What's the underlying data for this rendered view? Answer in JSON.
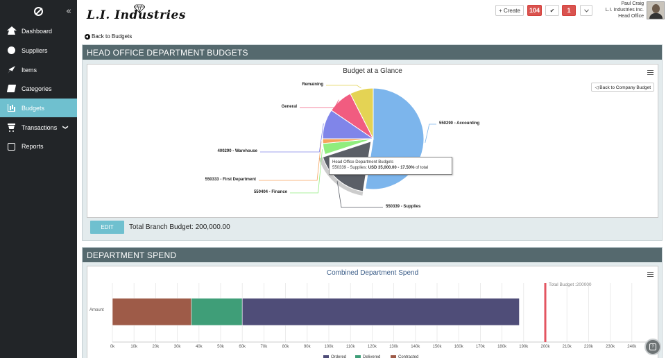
{
  "sidebar": {
    "collapse": "«",
    "items": [
      {
        "label": "Dashboard",
        "icon": "home-icon"
      },
      {
        "label": "Suppliers",
        "icon": "globe-icon"
      },
      {
        "label": "Items",
        "icon": "rocket-icon"
      },
      {
        "label": "Categories",
        "icon": "book-icon"
      },
      {
        "label": "Budgets",
        "icon": "bar-chart-icon",
        "active": true
      },
      {
        "label": "Transactions",
        "icon": "cart-icon",
        "chevron": "❯"
      },
      {
        "label": "Reports",
        "icon": "drive-icon"
      }
    ]
  },
  "header": {
    "brand": "L.I. Industries",
    "create_label": "+ Create",
    "badge_count": "104",
    "check_icon": "✔",
    "alert_badge": "1",
    "user": {
      "name": "Paul Craig",
      "company": "L.I. Industries Inc.",
      "office": "Head Office"
    }
  },
  "back_link": "Back to Budgets",
  "budgets_panel": {
    "title": "HEAD OFFICE DEPARTMENT BUDGETS",
    "chart_title": "Budget at a Glance",
    "back_company_label": "◁ Back to Company Budget",
    "edit_label": "EDIT",
    "total_branch": "Total Branch Budget: 200,000.00",
    "tooltip": {
      "line1": "Head Office Department Budgets",
      "line2_prefix": "550339 - Supplies: ",
      "line2_value": "USD 35,000.00 - 17.50%",
      "line2_suffix": " of total"
    }
  },
  "spend_panel": {
    "title": "DEPARTMENT SPEND",
    "chart_title": "Combined Department Spend",
    "category_label": "Amount",
    "budget_line_label": "Total Budget :200000"
  },
  "chart_data": [
    {
      "type": "pie",
      "title": "Budget at a Glance",
      "slices": [
        {
          "label": "550290 - Accounting",
          "value": 52.5,
          "color": "#7cb5ec"
        },
        {
          "label": "550339 - Supplies",
          "value": 17.5,
          "color": "#5b5f67"
        },
        {
          "label": "550404 - Finance",
          "value": 3.5,
          "color": "#90ed7d"
        },
        {
          "label": "550333 - First Department",
          "value": 1.5,
          "color": "#f7a35c"
        },
        {
          "label": "400290 - Warehouse",
          "value": 9.5,
          "color": "#8085e9"
        },
        {
          "label": "General",
          "value": 8.0,
          "color": "#f15c80"
        },
        {
          "label": "Remaining",
          "value": 7.5,
          "color": "#e4d354"
        }
      ]
    },
    {
      "type": "bar",
      "orientation": "horizontal",
      "stacked": true,
      "title": "Combined Department Spend",
      "categories": [
        "Amount"
      ],
      "series": [
        {
          "name": "Contracted",
          "values": [
            36500
          ],
          "color": "#9e5b48"
        },
        {
          "name": "Delivered",
          "values": [
            23500
          ],
          "color": "#3f9e78"
        },
        {
          "name": "Ordered",
          "values": [
            128000
          ],
          "color": "#4f4d78"
        }
      ],
      "legend_order": [
        "Ordered",
        "Delivered",
        "Contracted"
      ],
      "xlim": [
        0,
        250000
      ],
      "xticks": [
        "0k",
        "10k",
        "20k",
        "30k",
        "40k",
        "50k",
        "60k",
        "70k",
        "80k",
        "90k",
        "100k",
        "110k",
        "120k",
        "130k",
        "140k",
        "150k",
        "160k",
        "170k",
        "180k",
        "190k",
        "200k",
        "210k",
        "220k",
        "230k",
        "240k"
      ],
      "reference_line": {
        "value": 200000,
        "label": "Total Budget :200000",
        "color": "#e35561"
      },
      "legend_position": "bottom"
    }
  ]
}
